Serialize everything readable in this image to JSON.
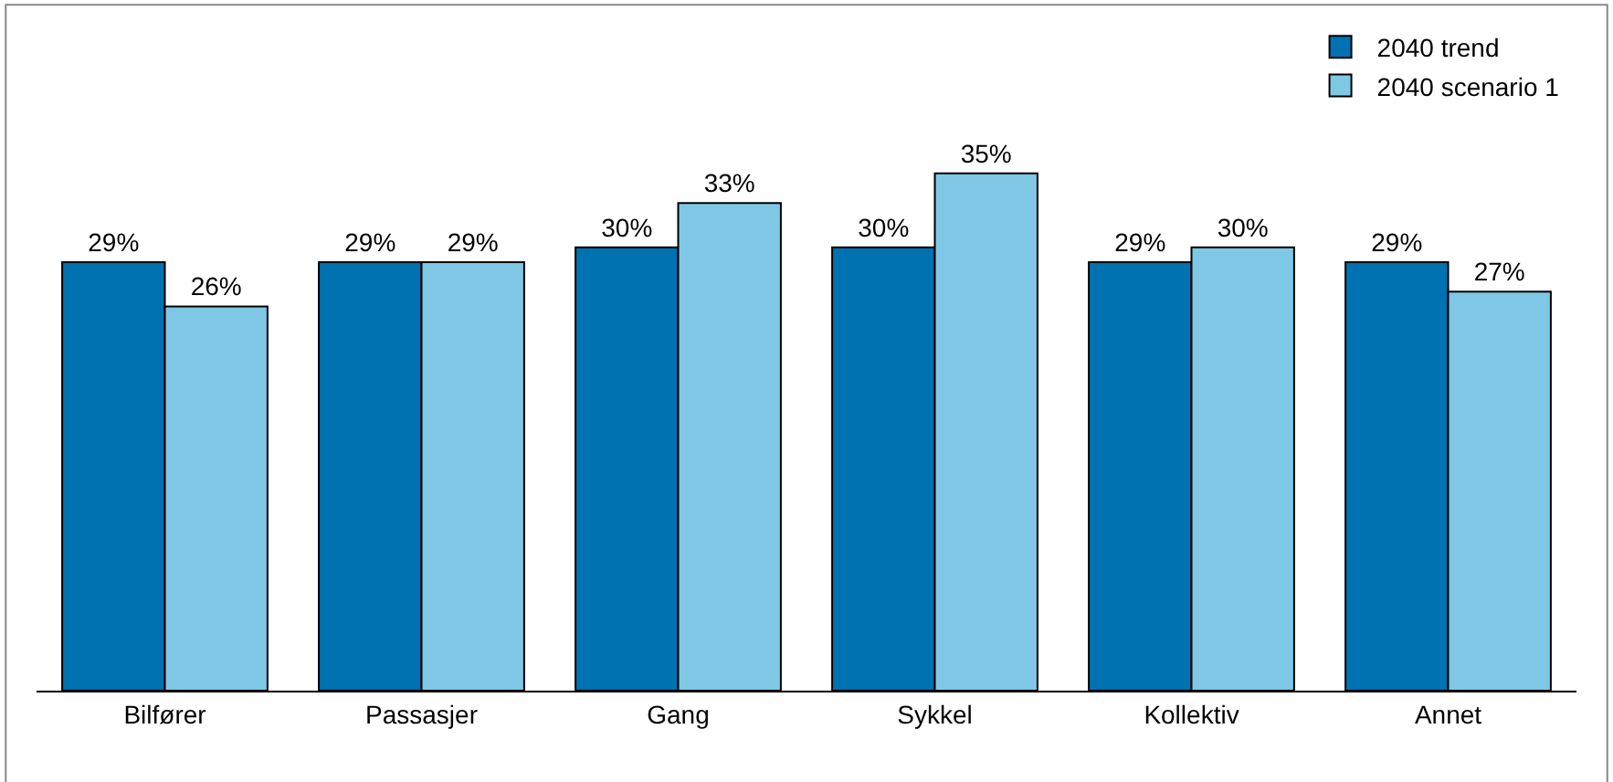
{
  "chart_data": {
    "type": "bar",
    "categories": [
      "Bilfører",
      "Passasjer",
      "Gang",
      "Sykkel",
      "Kollektiv",
      "Annet"
    ],
    "series": [
      {
        "name": "2040 trend",
        "color": "#0071b1",
        "values": [
          29,
          29,
          30,
          30,
          29,
          29
        ],
        "value_labels": [
          "29%",
          "29%",
          "30%",
          "30%",
          "29%",
          "29%"
        ]
      },
      {
        "name": "2040 scenario 1",
        "color": "#7ec8e6",
        "values": [
          26,
          29,
          33,
          35,
          30,
          27
        ],
        "value_labels": [
          "26%",
          "29%",
          "33%",
          "35%",
          "30%",
          "27%"
        ]
      }
    ],
    "legend": "top right"
  }
}
